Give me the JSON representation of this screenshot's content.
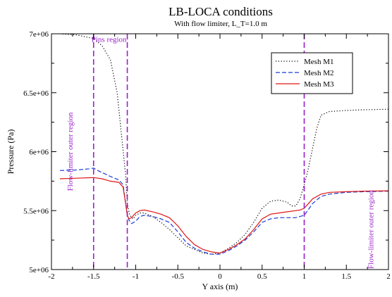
{
  "chart_data": {
    "type": "line",
    "title": "LB-LOCA conditions",
    "subtitle": "With flow limiter, L_T=1.0 m",
    "xlabel": "Y axis (m)",
    "ylabel": "Pressure (Pa)",
    "xlim": [
      -2,
      2
    ],
    "ylim": [
      5000000,
      7000000
    ],
    "x_ticks": [
      -2,
      -1.5,
      -1,
      -0.5,
      0,
      0.5,
      1,
      1.5,
      2
    ],
    "x_tick_labels": [
      "-2",
      "-1.5",
      "-1",
      "-0.5",
      "0",
      "0.5",
      "1",
      "1.5",
      "2"
    ],
    "y_ticks": [
      5000000,
      5500000,
      6000000,
      6500000,
      7000000
    ],
    "y_tick_labels": [
      "5e+06",
      "5.5e+06",
      "6e+06",
      "6.5e+06",
      "7e+06"
    ],
    "grid": false,
    "legend": {
      "placement": "top-right"
    },
    "region_lines": [
      {
        "x": -1.5,
        "color": "#9a1fc9"
      },
      {
        "x": -1.1,
        "color": "#9a1fc9"
      },
      {
        "x": 1.0,
        "color": "#9a1fc9"
      }
    ],
    "annotations": [
      {
        "text": "Pins region",
        "x": -1.5,
        "y": 6980000,
        "rotate": false,
        "color": "#9a1fc9"
      },
      {
        "text": "Flow-limiter outer region",
        "x": -1.75,
        "y": 6000000,
        "rotate": true,
        "color": "#9a1fc9"
      },
      {
        "text": "Flow-limiter outer region",
        "x": 1.82,
        "y": 5340000,
        "rotate": true,
        "color": "#9a1fc9"
      }
    ],
    "series": [
      {
        "name": "Mesh M1",
        "color": "#000000",
        "dash": "1.2,2.6",
        "x": [
          -1.9,
          -1.7,
          -1.5,
          -1.4,
          -1.3,
          -1.22,
          -1.17,
          -1.12,
          -1.1,
          -1.07,
          -1.03,
          -1.0,
          -0.95,
          -0.9,
          -0.8,
          -0.7,
          -0.6,
          -0.5,
          -0.4,
          -0.3,
          -0.2,
          -0.1,
          0.0,
          0.1,
          0.2,
          0.3,
          0.4,
          0.5,
          0.6,
          0.7,
          0.8,
          0.85,
          0.9,
          0.95,
          1.0,
          1.05,
          1.1,
          1.15,
          1.2,
          1.3,
          1.5,
          1.7,
          2.0
        ],
        "y": [
          7000000,
          6990000,
          6960000,
          6900000,
          6780000,
          6500000,
          6150000,
          5800000,
          5560000,
          5460000,
          5430000,
          5460000,
          5480000,
          5480000,
          5450000,
          5400000,
          5340000,
          5270000,
          5200000,
          5170000,
          5140000,
          5130000,
          5140000,
          5180000,
          5230000,
          5300000,
          5400000,
          5520000,
          5580000,
          5590000,
          5570000,
          5540000,
          5540000,
          5600000,
          5720000,
          5860000,
          6030000,
          6200000,
          6310000,
          6340000,
          6350000,
          6355000,
          6360000
        ]
      },
      {
        "name": "Mesh M2",
        "color": "#1a3cd6",
        "dash": "6,3",
        "x": [
          -1.9,
          -1.7,
          -1.55,
          -1.5,
          -1.45,
          -1.3,
          -1.2,
          -1.15,
          -1.12,
          -1.1,
          -1.08,
          -1.05,
          -1.0,
          -0.95,
          -0.9,
          -0.8,
          -0.7,
          -0.6,
          -0.5,
          -0.4,
          -0.3,
          -0.2,
          -0.1,
          0.0,
          0.1,
          0.2,
          0.3,
          0.4,
          0.5,
          0.6,
          0.7,
          0.8,
          0.9,
          0.95,
          1.0,
          1.05,
          1.1,
          1.2,
          1.3,
          1.5,
          1.7,
          2.0
        ],
        "y": [
          5840000,
          5845000,
          5855000,
          5860000,
          5840000,
          5790000,
          5760000,
          5720000,
          5560000,
          5470000,
          5420000,
          5390000,
          5410000,
          5450000,
          5460000,
          5450000,
          5430000,
          5400000,
          5320000,
          5230000,
          5180000,
          5150000,
          5130000,
          5130000,
          5160000,
          5200000,
          5250000,
          5320000,
          5400000,
          5430000,
          5440000,
          5440000,
          5440000,
          5450000,
          5460000,
          5510000,
          5560000,
          5620000,
          5640000,
          5655000,
          5660000,
          5665000
        ]
      },
      {
        "name": "Mesh M3",
        "color": "#e01515",
        "dash": "",
        "x": [
          -1.9,
          -1.7,
          -1.5,
          -1.4,
          -1.3,
          -1.2,
          -1.15,
          -1.12,
          -1.1,
          -1.08,
          -1.05,
          -1.0,
          -0.95,
          -0.9,
          -0.8,
          -0.7,
          -0.6,
          -0.5,
          -0.4,
          -0.3,
          -0.2,
          -0.1,
          0.0,
          0.1,
          0.2,
          0.3,
          0.4,
          0.5,
          0.6,
          0.7,
          0.8,
          0.9,
          0.95,
          1.0,
          1.05,
          1.1,
          1.2,
          1.3,
          1.5,
          1.7,
          2.0
        ],
        "y": [
          5770000,
          5775000,
          5780000,
          5770000,
          5750000,
          5740000,
          5700000,
          5560000,
          5460000,
          5430000,
          5440000,
          5480000,
          5500000,
          5505000,
          5490000,
          5470000,
          5440000,
          5370000,
          5280000,
          5210000,
          5170000,
          5150000,
          5140000,
          5170000,
          5210000,
          5260000,
          5340000,
          5430000,
          5470000,
          5480000,
          5490000,
          5500000,
          5505000,
          5520000,
          5560000,
          5600000,
          5640000,
          5655000,
          5660000,
          5665000,
          5668000
        ]
      }
    ]
  }
}
